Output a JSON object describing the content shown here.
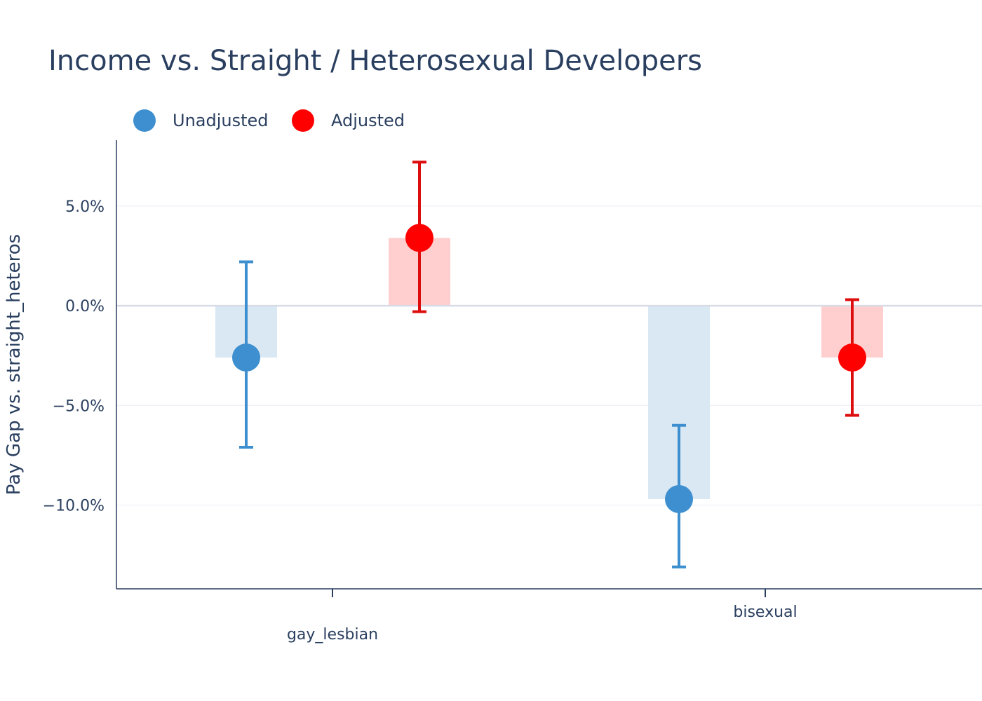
{
  "chart_data": {
    "type": "bar",
    "title": "Income vs. Straight / Heterosexual Developers",
    "xlabel": "",
    "ylabel": "Pay Gap vs. straight_heteros",
    "ylim": [
      -14.2,
      8.3
    ],
    "yticks": [
      5.0,
      0.0,
      -5.0,
      -10.0
    ],
    "ytick_labels": [
      "5.0%",
      "0.0%",
      "−5.0%",
      "−10.0%"
    ],
    "categories": [
      "gay_lesbian",
      "bisexual"
    ],
    "grid": true,
    "legend_placement": "top-left, horizontal",
    "series": [
      {
        "name": "Unadjusted",
        "color": "#3d8fcf",
        "bar_color": "#dae8f4",
        "values": [
          -2.6,
          -9.7
        ],
        "error_low": [
          -7.1,
          -13.1
        ],
        "error_high": [
          2.2,
          -6.0
        ]
      },
      {
        "name": "Adjusted",
        "color": "#ff0000",
        "bar_color": "#ffcfd0",
        "errorbar_color": "#dd0d0d",
        "values": [
          3.4,
          -2.6
        ],
        "error_low": [
          -0.3,
          -5.5
        ],
        "error_high": [
          7.2,
          0.3
        ]
      }
    ]
  }
}
